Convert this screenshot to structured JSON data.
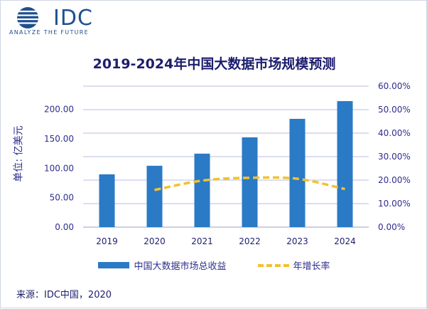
{
  "logo": {
    "text": "IDC",
    "tagline": "ANALYZE THE FUTURE",
    "icon": "globe-icon",
    "color": "#1f4f8f"
  },
  "chart_data": {
    "type": "bar",
    "title": "2019-2024年中国大数据市场规模预测",
    "ylabel": "单位: 亿美元",
    "y2label": "",
    "categories": [
      "2019",
      "2020",
      "2021",
      "2022",
      "2023",
      "2024"
    ],
    "ylim": [
      0,
      220
    ],
    "y_ticks": [
      "0.00",
      "50.00",
      "100.00",
      "150.00",
      "200.00"
    ],
    "y2lim": [
      0,
      0.6
    ],
    "y2_ticks": [
      "0.00%",
      "10.00%",
      "20.00%",
      "30.00%",
      "40.00%",
      "50.00%",
      "60.00%"
    ],
    "grid": true,
    "legend_position": "bottom",
    "series": [
      {
        "name": "中国大数据市场总收益",
        "type": "bar",
        "axis": "left",
        "color": "#2a7ac6",
        "values": [
          89.7,
          104.2,
          124.8,
          152.5,
          183.9,
          214.0
        ]
      },
      {
        "name": "年增长率",
        "type": "line",
        "style": "dashed",
        "axis": "right",
        "color": "#f2c12e",
        "values": [
          null,
          0.158,
          0.198,
          0.21,
          0.206,
          0.162
        ]
      }
    ]
  },
  "source": "来源：IDC中国，2020"
}
